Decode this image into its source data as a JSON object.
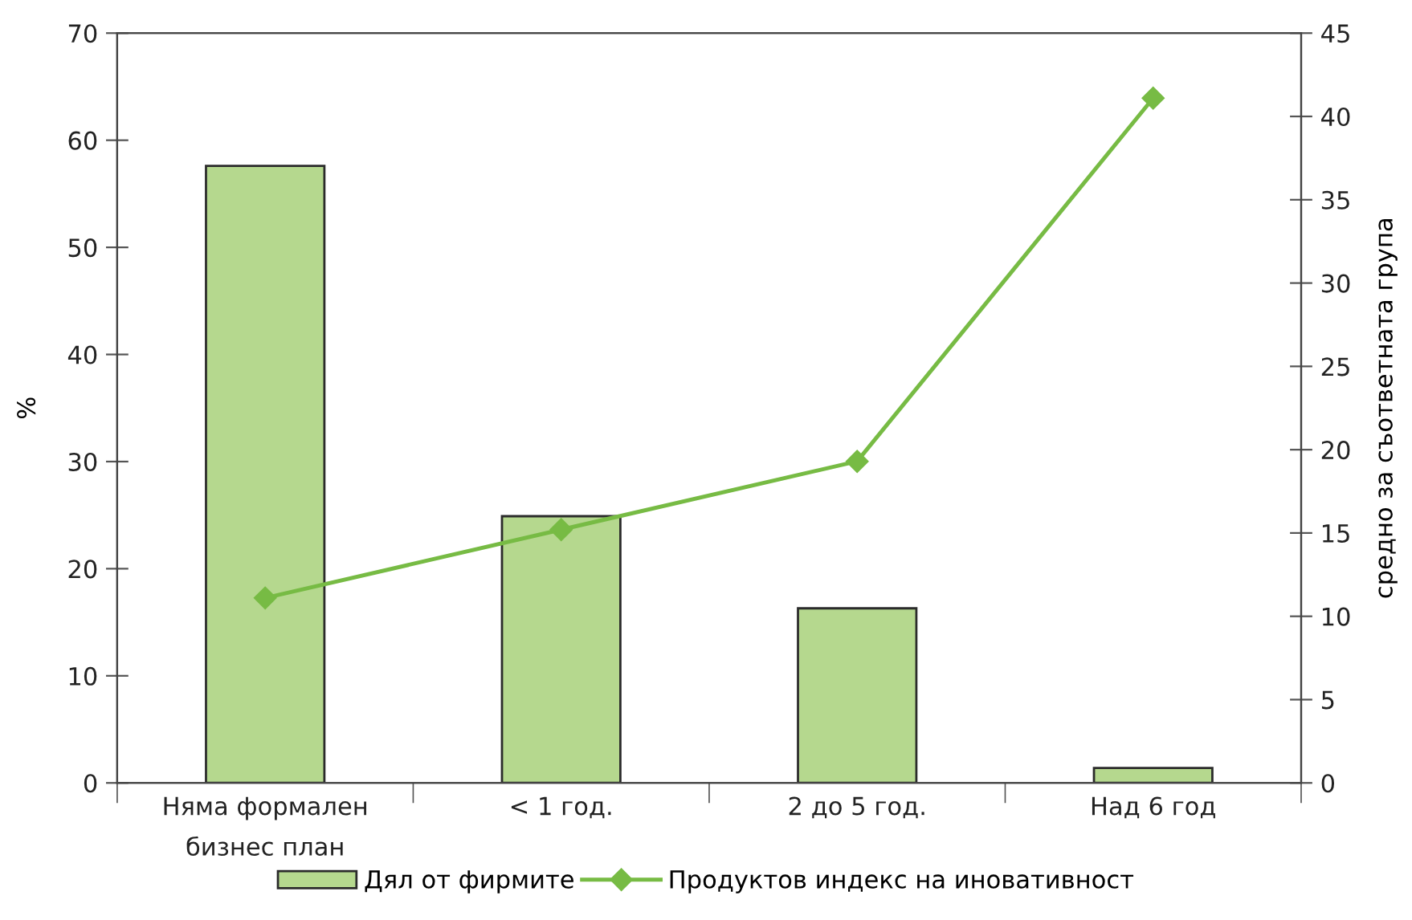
{
  "chart_data": {
    "type": "bar",
    "categories": [
      "Няма формален\nбизнес план",
      "< 1 год.",
      "2 до 5 год.",
      "Над 6 год"
    ],
    "ylabel": "%",
    "y2label": "средно за съответната група",
    "ylim": [
      0,
      70
    ],
    "yticks": [
      0,
      10,
      20,
      30,
      40,
      50,
      60,
      70
    ],
    "y2lim": [
      0,
      45
    ],
    "y2ticks": [
      0,
      5,
      10,
      15,
      20,
      25,
      30,
      35,
      40,
      45
    ],
    "legend": "bottom",
    "series": [
      {
        "name": "Дял от фирмите",
        "color": "#b5d88e",
        "values": [
          57.6,
          24.9,
          16.3,
          1.4
        ]
      },
      {
        "name": "Продуктов индекс на иновативност",
        "type": "line",
        "axis": "y2",
        "color": "#77bb44",
        "marker": "diamond",
        "line_style": "solid",
        "values": [
          11.1,
          15.2,
          19.3,
          41.1
        ]
      }
    ]
  }
}
